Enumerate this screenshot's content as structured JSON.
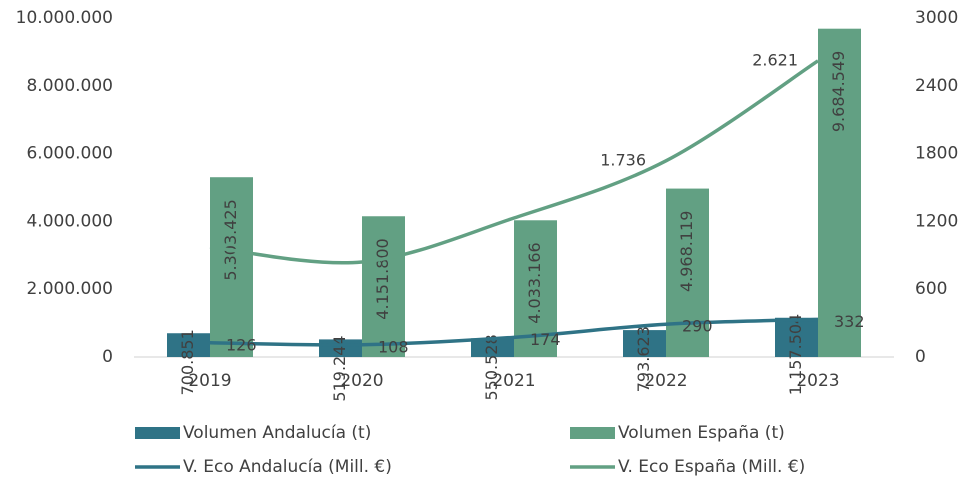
{
  "chart_data": {
    "type": "bar-line",
    "categories": [
      "2019",
      "2020",
      "2021",
      "2022",
      "2023"
    ],
    "series": [
      {
        "name": "Volumen Andalucía (t)",
        "type": "bar",
        "color": "#2f7386",
        "values": [
          700851,
          519244,
          550528,
          793623,
          1157504
        ],
        "value_labels": [
          "700.851",
          "519.244",
          "550.528",
          "793.623",
          "1.157.504"
        ]
      },
      {
        "name": "Volumen España (t)",
        "type": "bar",
        "color": "#62a083",
        "values": [
          5303425,
          4151800,
          4033166,
          4968119,
          9684549
        ],
        "value_labels": [
          "5.303.425",
          "4.151.800",
          "4.033.166",
          "4.968.119",
          "9.684.549"
        ]
      },
      {
        "name": "V. Eco Andalucía (Mill. €)",
        "type": "line",
        "axis": "y2",
        "color": "#2f7386",
        "values": [
          126,
          108,
          174,
          290,
          332
        ]
      },
      {
        "name": "V. Eco España (Mill. €)",
        "type": "line",
        "axis": "y2",
        "color": "#62a083",
        "values": [
          973,
          841,
          1230,
          1736,
          2621
        ],
        "value_labels": [
          null,
          null,
          null,
          "1.736",
          "2.621"
        ]
      }
    ],
    "ylim": [
      0,
      10000000
    ],
    "yticks": [
      0,
      {
        "value": 2000000,
        "label": "2.000.000"
      },
      {
        "value": 4000000,
        "label": "4.000.000"
      },
      {
        "value": 6000000,
        "label": "6.000.000"
      },
      {
        "value": 8000000,
        "label": "8.000.000"
      },
      {
        "value": 10000000,
        "label": "10.000.000"
      }
    ],
    "y2lim": [
      0,
      3000
    ],
    "y2ticks": [
      0,
      600,
      1200,
      1800,
      2400,
      3000
    ],
    "grid": false,
    "legend": "bottom"
  }
}
